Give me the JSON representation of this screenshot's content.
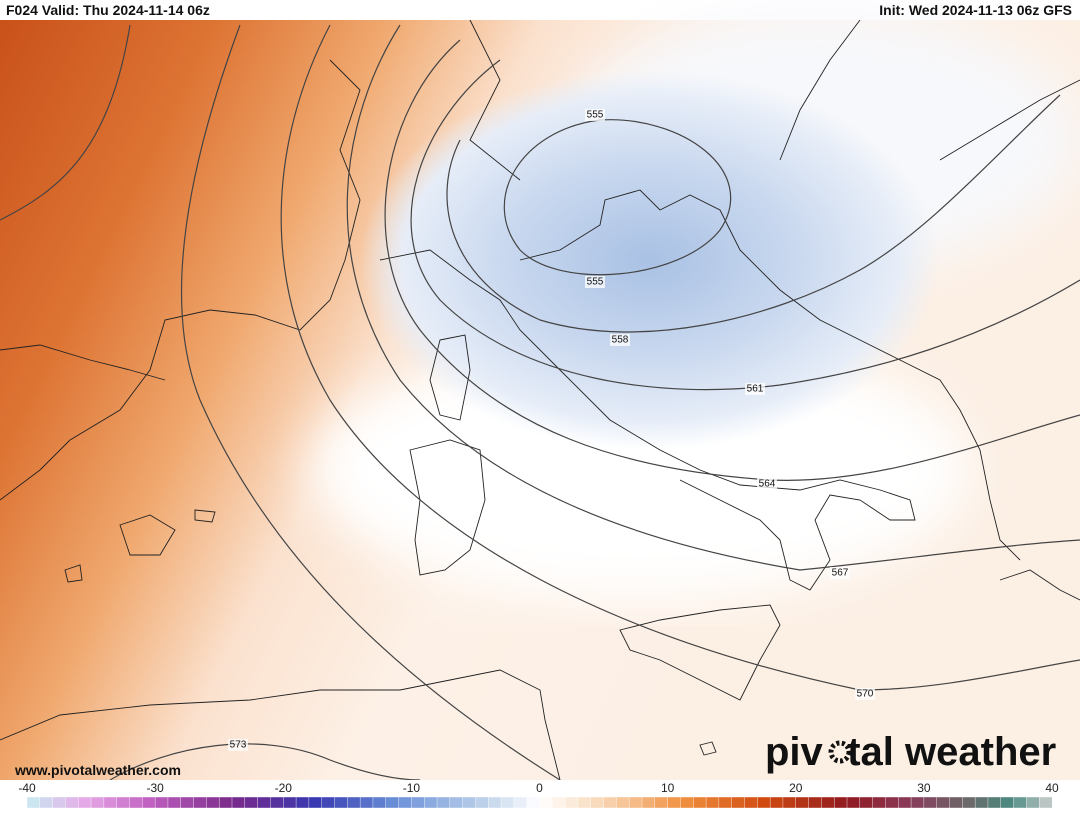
{
  "header": {
    "left": "F024 Valid: Thu 2024-11-14 06z",
    "right": "Init: Wed 2024-11-13 06z GFS"
  },
  "contour_labels": [
    555,
    555,
    558,
    561,
    564,
    567,
    570,
    573
  ],
  "watermark": "www.pivotalweather.com",
  "logo": {
    "left": "piv",
    "right": "tal weather"
  },
  "colorbar": {
    "ticks": [
      -40,
      -30,
      -20,
      -10,
      0,
      10,
      20,
      30,
      40
    ]
  }
}
